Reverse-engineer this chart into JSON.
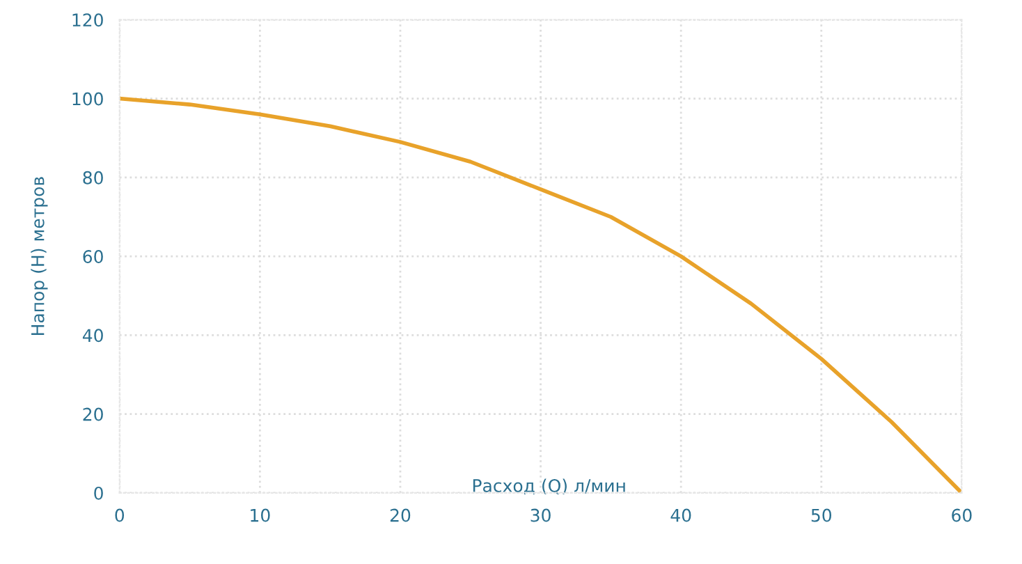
{
  "chart_data": {
    "type": "line",
    "xlabel": "Расход (Q) л/мин",
    "ylabel": "Напор (H) метров",
    "x": [
      0,
      5,
      10,
      15,
      20,
      25,
      30,
      35,
      40,
      45,
      50,
      55,
      60
    ],
    "series": [
      {
        "color": "#e8a22a",
        "values": [
          100,
          98.5,
          96,
          93,
          89,
          84,
          77,
          70,
          60,
          48,
          34,
          18,
          0
        ]
      }
    ],
    "xlim": [
      0,
      60
    ],
    "xticks": [
      0,
      10,
      20,
      30,
      40,
      50,
      60
    ],
    "ylim": [
      0,
      120
    ],
    "yticks": [
      0,
      20,
      40,
      60,
      80,
      100,
      120
    ],
    "grid": true,
    "marker": "none",
    "line_style": "solid"
  }
}
